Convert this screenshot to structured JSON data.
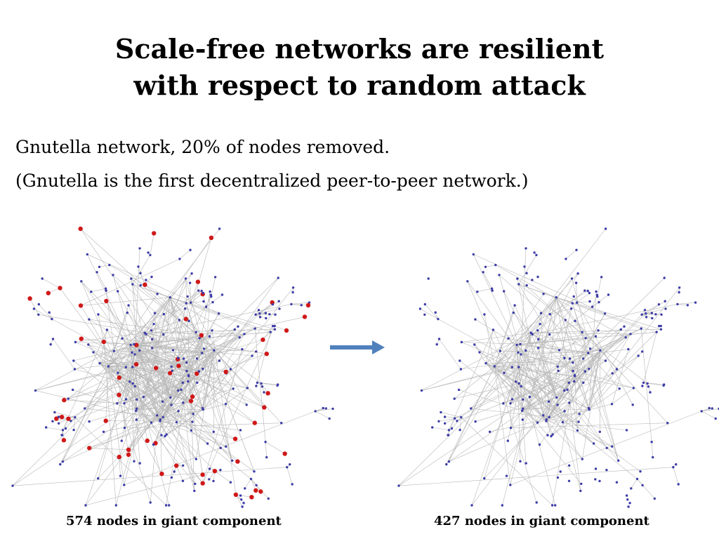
{
  "slide": {
    "title_line1": "Scale-free networks are resilient",
    "title_line2": "with respect to random attack",
    "body_line1": "Gnutella network, 20% of nodes removed.",
    "body_line2": "(Gnutella is the first decentralized peer-to-peer network.)",
    "caption_left": "574 nodes in giant component",
    "caption_right": "427 nodes in giant component"
  },
  "colors": {
    "node": "#3c3ca8",
    "removed_node": "#d01818",
    "edge": "#b8b8b8",
    "arrow": "#4f81bd"
  }
}
